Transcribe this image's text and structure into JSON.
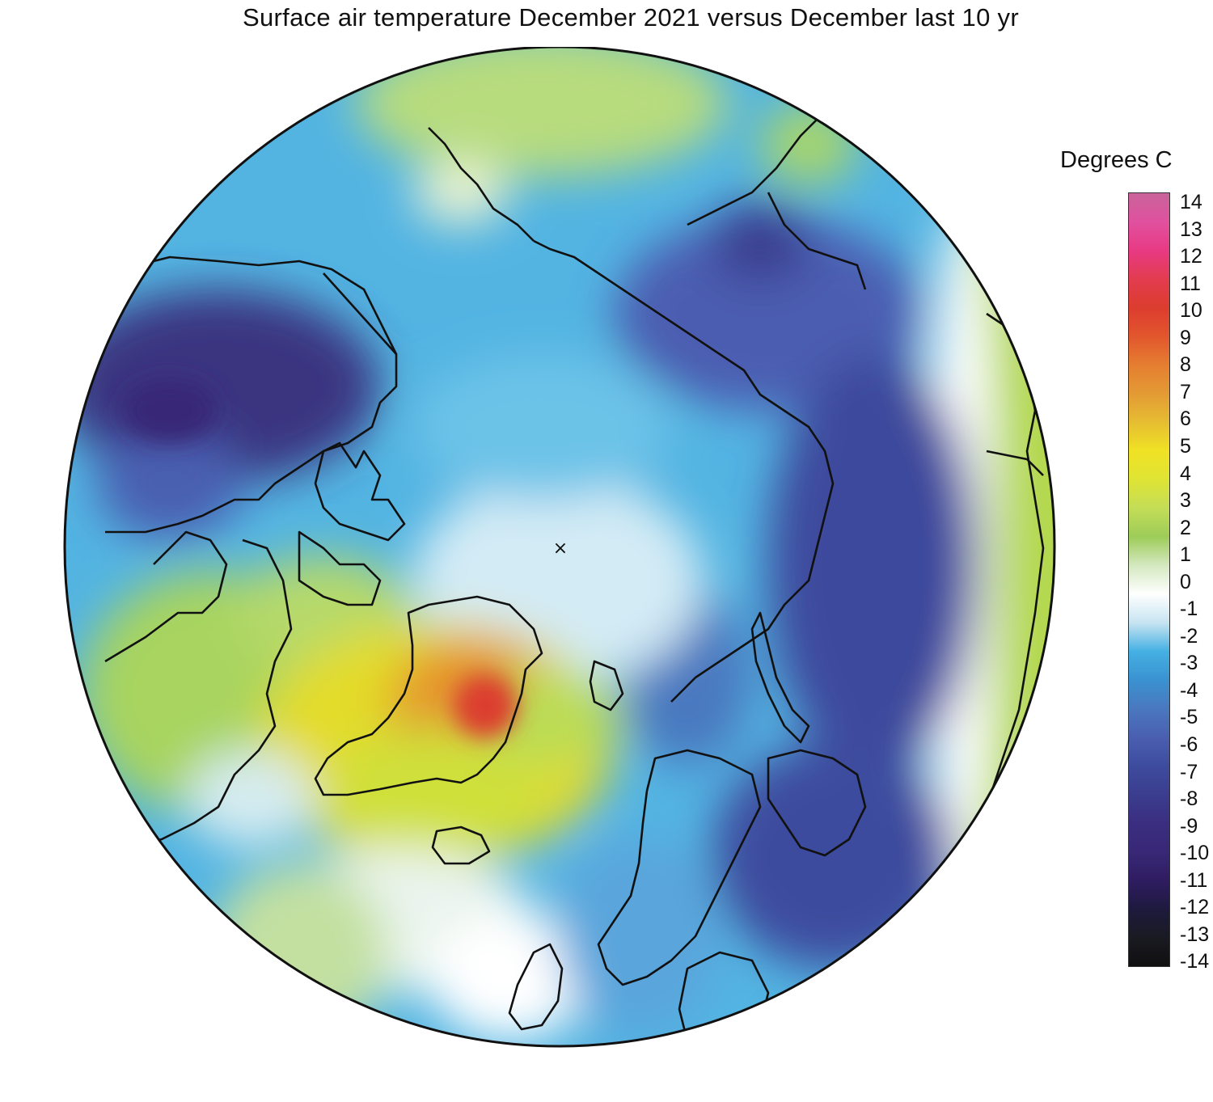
{
  "title": "Surface air temperature December 2021 versus December last 10 yr",
  "legend": {
    "title": "Degrees C",
    "ticks": [
      "14",
      "13",
      "12",
      "11",
      "10",
      "9",
      "8",
      "7",
      "6",
      "5",
      "4",
      "3",
      "2",
      "1",
      "0",
      "-1",
      "-2",
      "-3",
      "-4",
      "-5",
      "-6",
      "-7",
      "-8",
      "-9",
      "-10",
      "-11",
      "-12",
      "-13",
      "-14"
    ],
    "colors": [
      "#c8649a",
      "#e0519f",
      "#e83a83",
      "#e23c4f",
      "#dc3d2e",
      "#e2562d",
      "#e57e31",
      "#e39a34",
      "#e6bd32",
      "#f0e224",
      "#dfe434",
      "#c4dd57",
      "#9dcc58",
      "#d4e8c0",
      "#ffffff",
      "#c7e4f1",
      "#45b0e3",
      "#3a92d0",
      "#4a78bf",
      "#4a5fb0",
      "#3e4c9e",
      "#3b3d8e",
      "#3b2e80",
      "#382876",
      "#2f1c62",
      "#1e1a3e",
      "#1a1a22",
      "#101010"
    ]
  },
  "map": {
    "pole_marker": "×",
    "outline_color": "#111111"
  }
}
